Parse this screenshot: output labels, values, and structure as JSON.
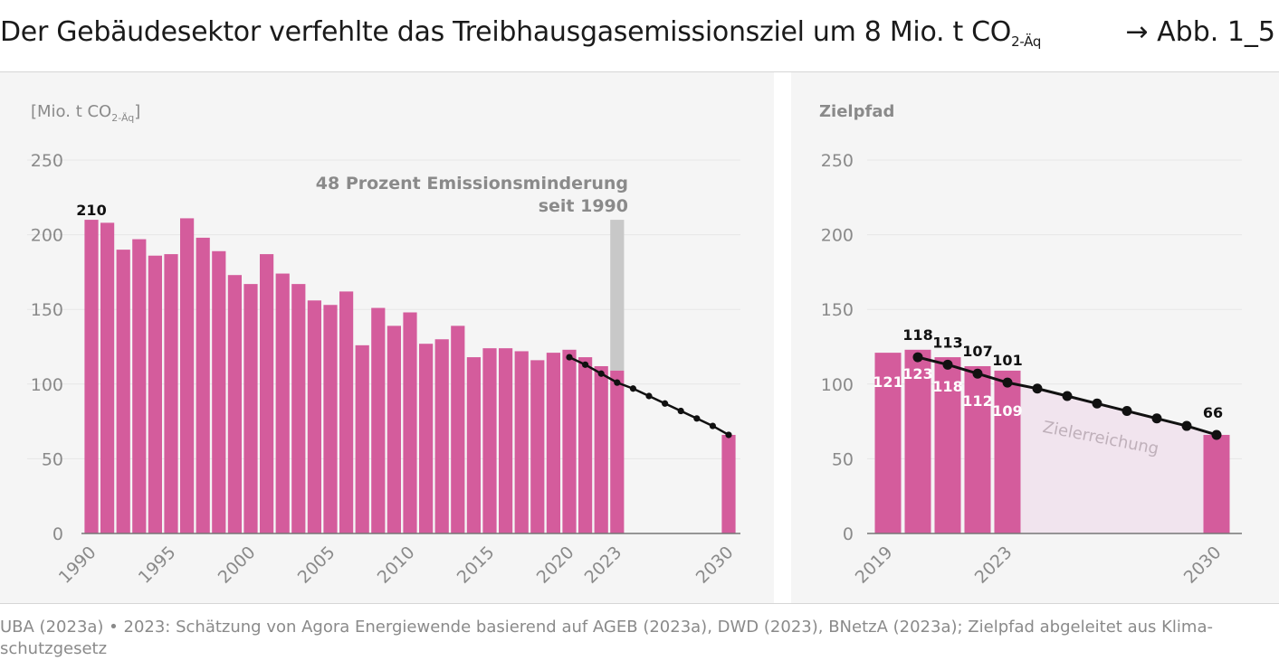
{
  "figure": {
    "title": "Der Gebäudesektor verfehlte das Treibhausgasemissionsziel um 8 Mio. t CO",
    "title_sub": "2-Äq",
    "figure_ref": "→ Abb. 1_5",
    "source": "UBA (2023a) • 2023: Schätzung von Agora Energiewende basierend auf AGEB (2023a), DWD (2023), BNetzA (2023a); Zielpfad abgeleitet aus Klima­schutzgesetz"
  },
  "colors": {
    "bar": "#d45c9c",
    "reduction": "#c8c8c8",
    "path": "#111111",
    "target_area": "#f1e4ee",
    "grid": "#e6e6e6",
    "tick_text": "#8a8a8a",
    "annotation": "#8a8a8a",
    "panel_bg": "#f5f5f5"
  },
  "chart_data": [
    {
      "type": "bar",
      "ylabel": "[Mio. t CO",
      "ylabel_sub": "2-Äq",
      "ylabel_end": "]",
      "ylim": [
        0,
        250
      ],
      "yticks": [
        0,
        50,
        100,
        150,
        200,
        250
      ],
      "x_tick_labels": [
        "1990",
        "1995",
        "2000",
        "2005",
        "2010",
        "2015",
        "2020",
        "2023",
        "2030"
      ],
      "grid": true,
      "categories": [
        1990,
        1991,
        1992,
        1993,
        1994,
        1995,
        1996,
        1997,
        1998,
        1999,
        2000,
        2001,
        2002,
        2003,
        2004,
        2005,
        2006,
        2007,
        2008,
        2009,
        2010,
        2011,
        2012,
        2013,
        2014,
        2015,
        2016,
        2017,
        2018,
        2019,
        2020,
        2021,
        2022,
        2023,
        2030
      ],
      "series": [
        {
          "values": [
            210,
            208,
            190,
            197,
            186,
            187,
            211,
            198,
            189,
            173,
            167,
            187,
            174,
            167,
            156,
            153,
            162,
            126,
            151,
            139,
            148,
            127,
            130,
            139,
            118,
            124,
            124,
            122,
            116,
            121,
            123,
            118,
            112,
            109,
            66
          ]
        }
      ],
      "reduction_bar": {
        "x": 2023,
        "from": 109,
        "to": 210
      },
      "target_path": {
        "x": [
          2020,
          2021,
          2022,
          2023,
          2024,
          2025,
          2026,
          2027,
          2028,
          2029,
          2030
        ],
        "y": [
          118,
          113,
          107,
          101,
          97,
          92,
          87,
          82,
          77,
          72,
          66
        ]
      },
      "data_labels": [
        {
          "x": 1990,
          "text": "210"
        }
      ],
      "annotation": [
        "48 Prozent Emissionsminderung",
        "seit 1990"
      ]
    },
    {
      "type": "bar",
      "ylabel": "Zielpfad",
      "ylim": [
        0,
        250
      ],
      "yticks": [
        0,
        50,
        100,
        150,
        200,
        250
      ],
      "x_tick_labels": [
        "2019",
        "2023",
        "2030"
      ],
      "grid": true,
      "categories": [
        2019,
        2020,
        2021,
        2022,
        2023,
        2030
      ],
      "series": [
        {
          "values": [
            121,
            123,
            118,
            112,
            109,
            66
          ]
        }
      ],
      "bar_value_labels": [
        "121",
        "123",
        "118",
        "112",
        "109"
      ],
      "target_path": {
        "x": [
          2020,
          2021,
          2022,
          2023,
          2024,
          2025,
          2026,
          2027,
          2028,
          2029,
          2030
        ],
        "y": [
          118,
          113,
          107,
          101,
          97,
          92,
          87,
          82,
          77,
          72,
          66
        ]
      },
      "target_labels": [
        {
          "x": 2020,
          "text": "118"
        },
        {
          "x": 2021,
          "text": "113"
        },
        {
          "x": 2022,
          "text": "107"
        },
        {
          "x": 2023,
          "text": "101"
        },
        {
          "x": 2030,
          "text": "66"
        }
      ],
      "area_label": "Zielerreichung"
    }
  ]
}
